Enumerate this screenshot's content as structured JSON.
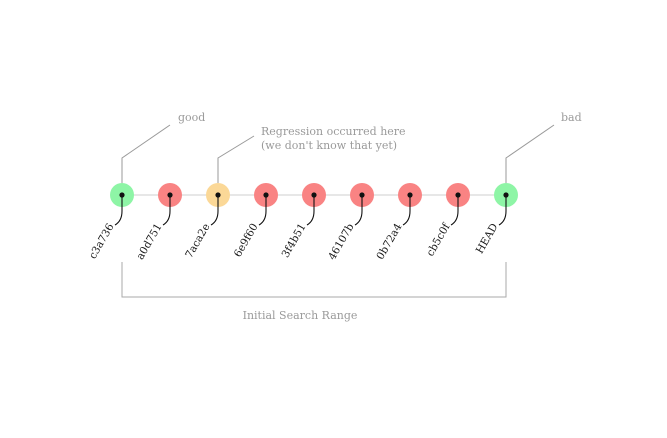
{
  "annotations": {
    "good": "good",
    "regression_line1": "Regression occurred here",
    "regression_line2": "(we don't know that yet)",
    "bad": "bad"
  },
  "range_label": "Initial Search Range",
  "commits": [
    {
      "id": "c3a736",
      "status": "good"
    },
    {
      "id": "a0d751",
      "status": "bad"
    },
    {
      "id": "7aca2e",
      "status": "regression"
    },
    {
      "id": "6e9f60",
      "status": "bad"
    },
    {
      "id": "3f4b51",
      "status": "bad"
    },
    {
      "id": "46107b",
      "status": "bad"
    },
    {
      "id": "0b72a4",
      "status": "bad"
    },
    {
      "id": "cb5c0f",
      "status": "bad"
    },
    {
      "id": "HEAD",
      "status": "good"
    }
  ],
  "colors": {
    "good": "#8ef5a6",
    "bad": "#f98383",
    "regression": "#fbd897",
    "dot": "#111111"
  }
}
